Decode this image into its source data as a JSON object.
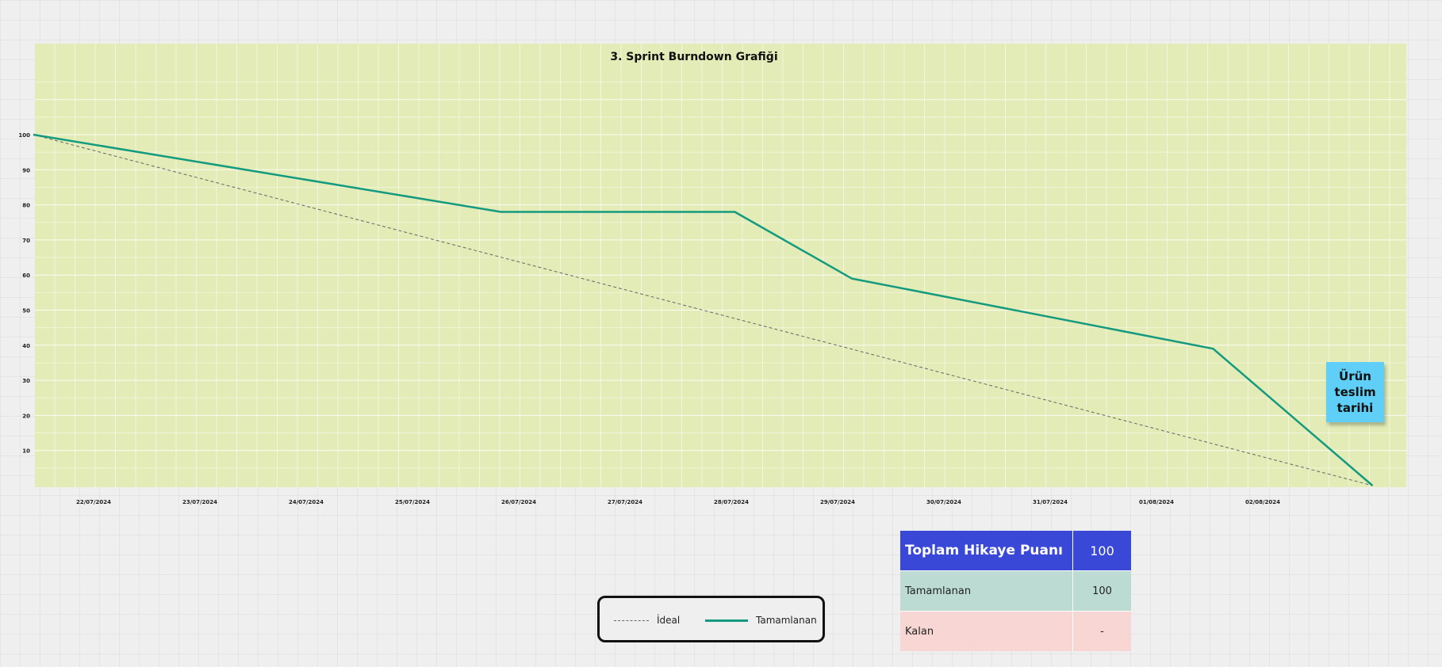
{
  "chart_data": {
    "type": "line",
    "title": "3. Sprint Burndown Grafiği",
    "categories": [
      "22/07/2024",
      "23/07/2024",
      "24/07/2024",
      "25/07/2024",
      "26/07/2024",
      "27/07/2024",
      "28/07/2024",
      "29/07/2024",
      "30/07/2024",
      "31/07/2024",
      "01/08/2024",
      "02/08/2024"
    ],
    "yticks": [
      10,
      20,
      30,
      40,
      50,
      60,
      70,
      80,
      90,
      100
    ],
    "ylim": [
      0,
      100
    ],
    "grid": true,
    "series": [
      {
        "name": "İdeal",
        "style": "dashed",
        "color": "#666666",
        "points": [
          {
            "x": 0,
            "y": 100
          },
          {
            "x": 12.6,
            "y": 0
          }
        ]
      },
      {
        "name": "Tamamlanan",
        "style": "solid",
        "color": "#149a7e",
        "points": [
          {
            "x": 0,
            "y": 100
          },
          {
            "x": 4.4,
            "y": 78
          },
          {
            "x": 6.6,
            "y": 78
          },
          {
            "x": 7.7,
            "y": 59
          },
          {
            "x": 11.1,
            "y": 39
          },
          {
            "x": 12.6,
            "y": 0
          }
        ]
      }
    ],
    "background": "#e3ecb6"
  },
  "sticky_note": {
    "text": "Ürün teslim tarihi",
    "color": "#5fcff7"
  },
  "legend": {
    "items": [
      {
        "label": "İdeal"
      },
      {
        "label": "Tamamlanan"
      }
    ]
  },
  "summary": {
    "total_label": "Toplam Hikaye Puanı",
    "total_value": "100",
    "done_label": "Tamamlanan",
    "done_value": "100",
    "remaining_label": "Kalan",
    "remaining_value": "-",
    "colors": {
      "total": "#3a48d8",
      "done": "#bcdcd3",
      "remaining": "#f7d6d4"
    }
  }
}
